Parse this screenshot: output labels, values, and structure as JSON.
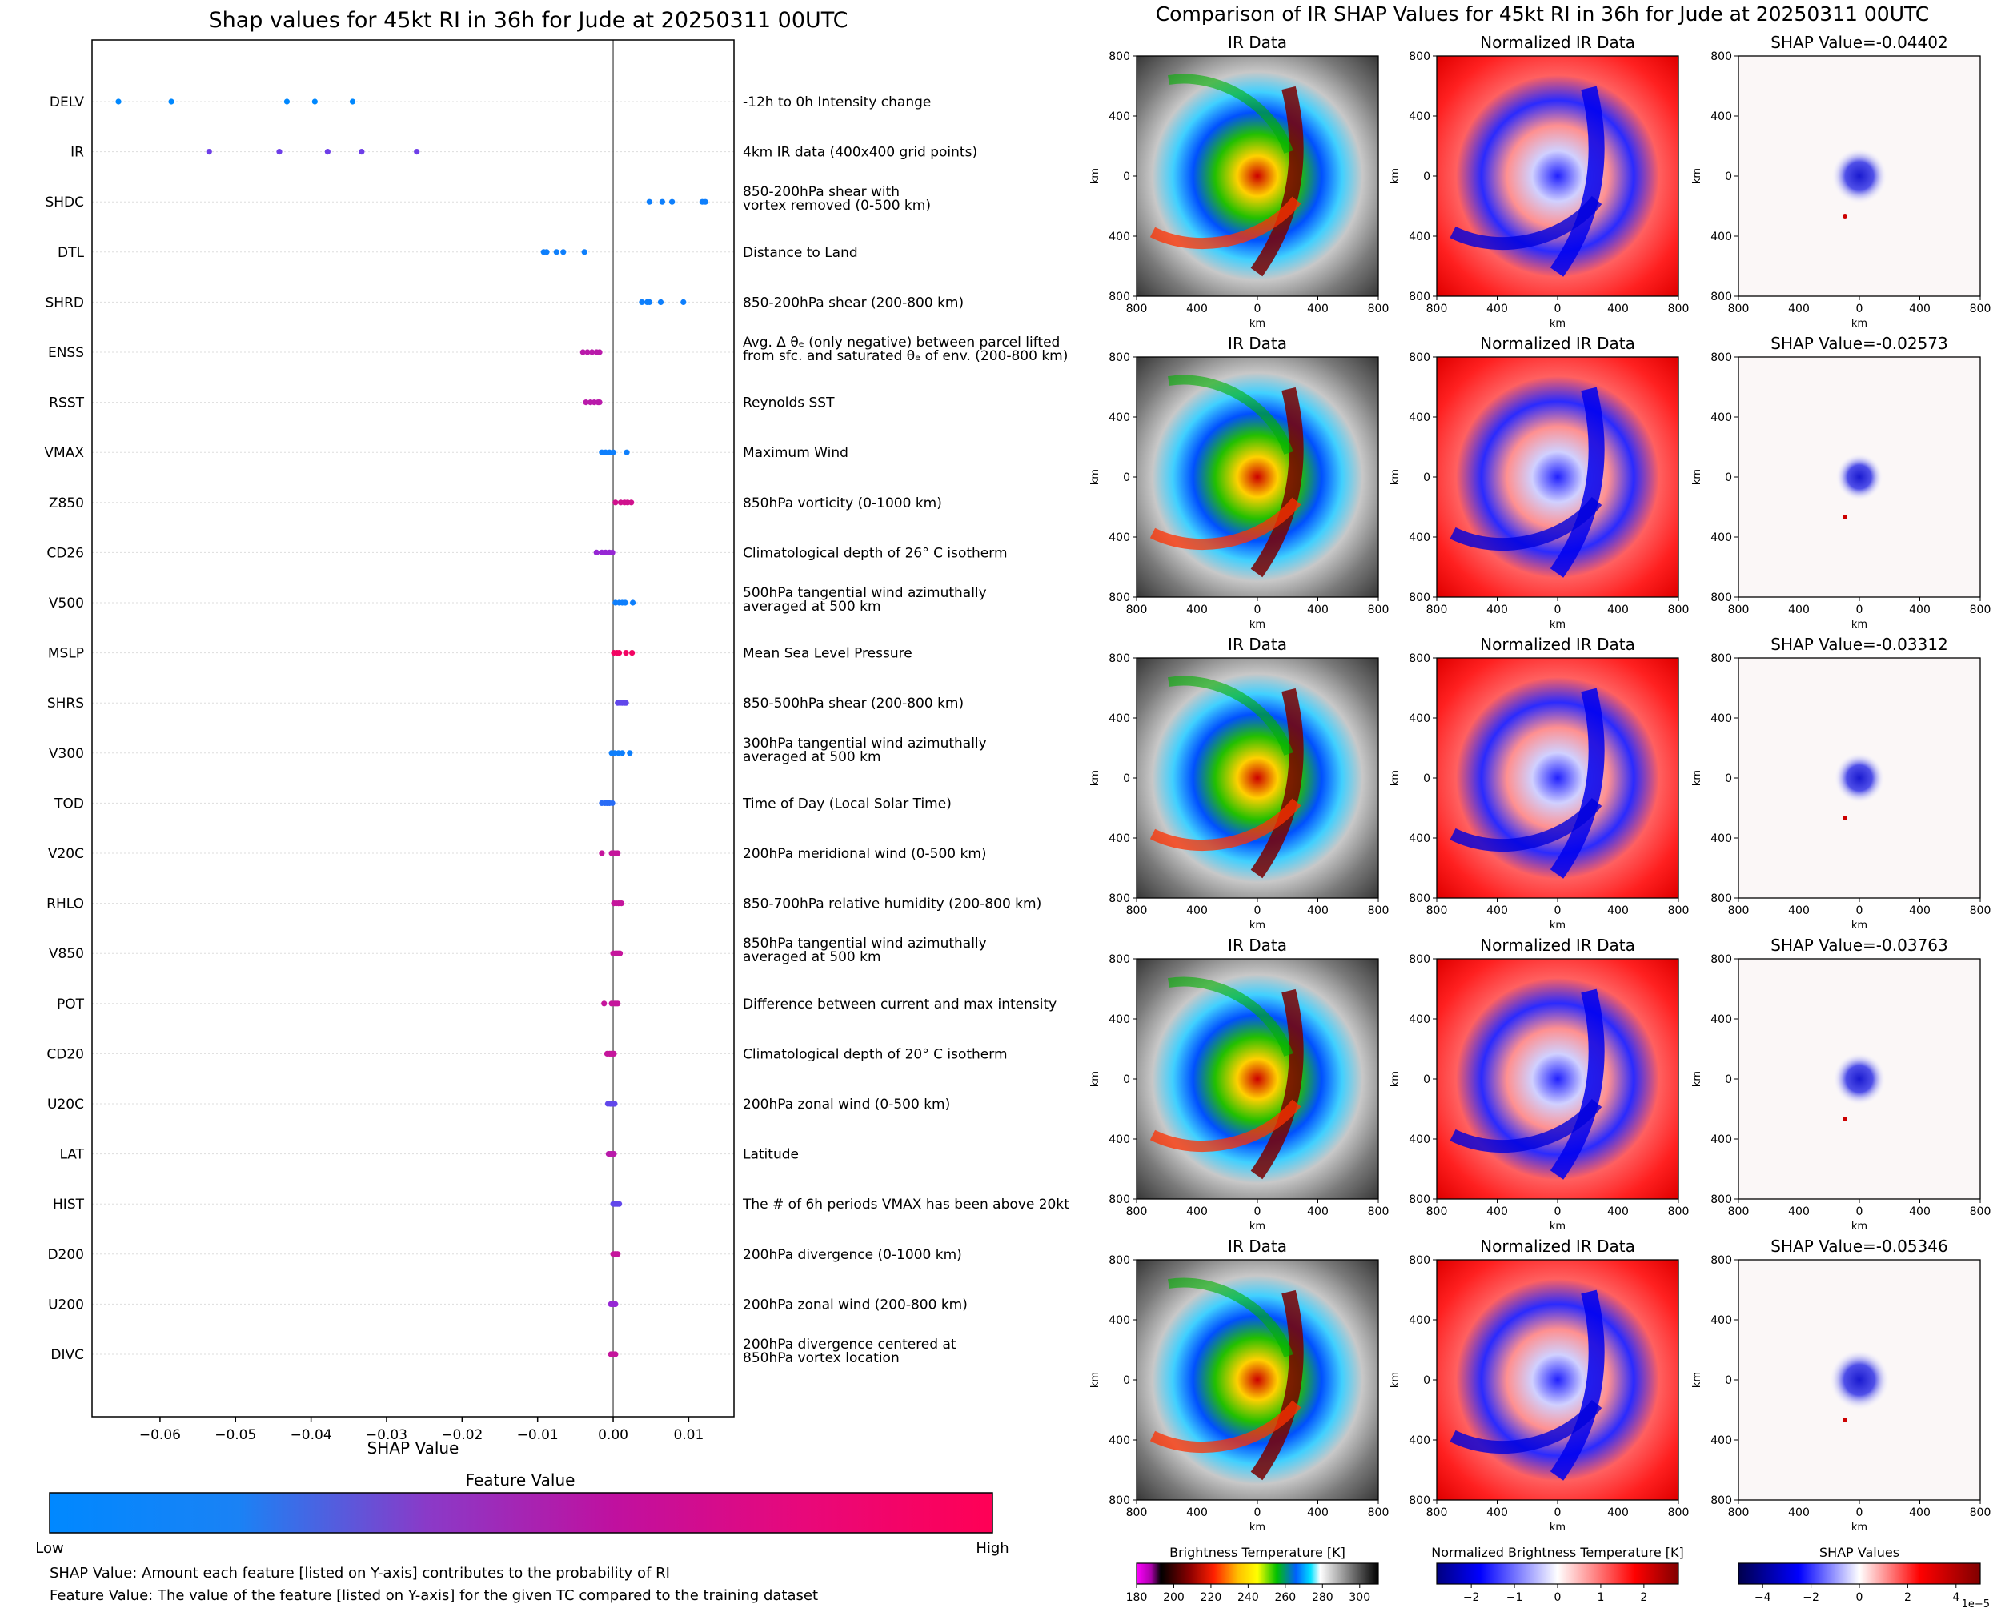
{
  "left_title": "Shap values for 45kt RI in 36h for Jude at 20250311 00UTC",
  "right_title": "Comparison of IR SHAP Values for 45kt RI in 36h for Jude at 20250311 00UTC",
  "colors": {
    "low": "#0088ff",
    "mid": "#8a2be2",
    "high": "#ff0055"
  },
  "chart_data": [
    {
      "type": "scatter",
      "title": "Shap values for 45kt RI in 36h for Jude at 20250311 00UTC",
      "xlabel": "SHAP Value",
      "ylabel": "",
      "xlim": [
        -0.069,
        0.016
      ],
      "xticks": [
        -0.06,
        -0.05,
        -0.04,
        -0.03,
        -0.02,
        -0.01,
        0.0,
        0.01
      ],
      "xtick_labels": [
        "−0.06",
        "−0.05",
        "−0.04",
        "−0.03",
        "−0.02",
        "−0.01",
        "0.00",
        "0.01"
      ],
      "grid": false,
      "features": [
        {
          "name": "DELV",
          "desc": [
            "-12h to 0h Intensity change"
          ],
          "shap": [
            -0.0655,
            -0.0585,
            -0.0432,
            -0.0395,
            -0.0345
          ],
          "fv": [
            0.0,
            0.0,
            0.0,
            0.0,
            0.0
          ]
        },
        {
          "name": "IR",
          "desc": [
            "4km IR data (400x400 grid points)"
          ],
          "shap": [
            -0.0535,
            -0.0442,
            -0.0378,
            -0.0333,
            -0.026
          ],
          "fv": [
            0.4,
            0.4,
            0.4,
            0.4,
            0.4
          ]
        },
        {
          "name": "SHDC",
          "desc": [
            "850-200hPa shear with",
            "vortex removed (0-500 km)"
          ],
          "shap": [
            0.0048,
            0.0065,
            0.0078,
            0.0118,
            0.0122
          ],
          "fv": [
            0.05,
            0.05,
            0.05,
            0.05,
            0.05
          ]
        },
        {
          "name": "DTL",
          "desc": [
            "Distance to Land"
          ],
          "shap": [
            -0.0092,
            -0.0088,
            -0.0075,
            -0.0066,
            -0.0038
          ],
          "fv": [
            0.05,
            0.05,
            0.05,
            0.05,
            0.05
          ]
        },
        {
          "name": "SHRD",
          "desc": [
            "850-200hPa shear (200-800 km)"
          ],
          "shap": [
            0.0038,
            0.0045,
            0.0048,
            0.0063,
            0.0093
          ],
          "fv": [
            0.05,
            0.05,
            0.05,
            0.05,
            0.05
          ]
        },
        {
          "name": "ENSS",
          "desc": [
            "Avg. Δ θₑ (only negative) between parcel lifted",
            "from sfc. and saturated θₑ of env. (200-800 km)"
          ],
          "shap": [
            -0.004,
            -0.0034,
            -0.0028,
            -0.0022,
            -0.0018
          ],
          "fv": [
            0.7,
            0.7,
            0.7,
            0.7,
            0.7
          ]
        },
        {
          "name": "RSST",
          "desc": [
            "Reynolds SST"
          ],
          "shap": [
            -0.0036,
            -0.003,
            -0.0025,
            -0.002,
            -0.0018
          ],
          "fv": [
            0.7,
            0.7,
            0.7,
            0.7,
            0.7
          ]
        },
        {
          "name": "VMAX",
          "desc": [
            "Maximum Wind"
          ],
          "shap": [
            -0.0015,
            -0.001,
            -0.0005,
            0.0,
            0.0018
          ],
          "fv": [
            0.05,
            0.05,
            0.05,
            0.05,
            0.05
          ]
        },
        {
          "name": "Z850",
          "desc": [
            "850hPa vorticity (0-1000 km)"
          ],
          "shap": [
            0.0003,
            0.001,
            0.0015,
            0.0019,
            0.0024
          ],
          "fv": [
            0.8,
            0.8,
            0.8,
            0.8,
            0.8
          ]
        },
        {
          "name": "CD26",
          "desc": [
            "Climatological depth of 26° C isotherm"
          ],
          "shap": [
            -0.0022,
            -0.0015,
            -0.001,
            -0.0005,
            -0.0001
          ],
          "fv": [
            0.55,
            0.55,
            0.55,
            0.55,
            0.55
          ]
        },
        {
          "name": "V500",
          "desc": [
            "500hPa tangential wind azimuthally",
            "averaged at 500 km"
          ],
          "shap": [
            0.0003,
            0.0008,
            0.0012,
            0.0016,
            0.0026
          ],
          "fv": [
            0.05,
            0.05,
            0.05,
            0.05,
            0.05
          ]
        },
        {
          "name": "MSLP",
          "desc": [
            "Mean Sea Level Pressure"
          ],
          "shap": [
            0.0001,
            0.0005,
            0.0008,
            0.0017,
            0.0025
          ],
          "fv": [
            0.95,
            0.95,
            0.95,
            0.95,
            0.95
          ]
        },
        {
          "name": "SHRS",
          "desc": [
            "850-500hPa shear (200-800 km)"
          ],
          "shap": [
            0.0006,
            0.0009,
            0.0012,
            0.0015,
            0.0017
          ],
          "fv": [
            0.35,
            0.35,
            0.35,
            0.35,
            0.35
          ]
        },
        {
          "name": "V300",
          "desc": [
            "300hPa tangential wind azimuthally",
            "averaged at 500 km"
          ],
          "shap": [
            -0.0002,
            0.0002,
            0.0007,
            0.0012,
            0.0022
          ],
          "fv": [
            0.05,
            0.05,
            0.05,
            0.05,
            0.05
          ]
        },
        {
          "name": "TOD",
          "desc": [
            "Time of Day (Local Solar Time)"
          ],
          "shap": [
            -0.0015,
            -0.0011,
            -0.0008,
            -0.0005,
            -0.0001
          ],
          "fv": [
            0.15,
            0.15,
            0.15,
            0.15,
            0.15
          ]
        },
        {
          "name": "V20C",
          "desc": [
            "200hPa meridional wind (0-500 km)"
          ],
          "shap": [
            -0.0015,
            -0.0002,
            0.0001,
            0.0004,
            0.0006
          ],
          "fv": [
            0.75,
            0.75,
            0.75,
            0.75,
            0.75
          ]
        },
        {
          "name": "RHLO",
          "desc": [
            "850-700hPa relative humidity (200-800 km)"
          ],
          "shap": [
            0.0001,
            0.0004,
            0.0007,
            0.0009,
            0.0011
          ],
          "fv": [
            0.75,
            0.75,
            0.75,
            0.75,
            0.75
          ]
        },
        {
          "name": "V850",
          "desc": [
            "850hPa tangential wind azimuthally",
            "averaged at 500 km"
          ],
          "shap": [
            0.0,
            0.0003,
            0.0005,
            0.0007,
            0.0009
          ],
          "fv": [
            0.75,
            0.75,
            0.75,
            0.75,
            0.75
          ]
        },
        {
          "name": "POT",
          "desc": [
            "Difference between current and max intensity"
          ],
          "shap": [
            -0.0012,
            -0.0002,
            0.0002,
            0.0004,
            0.0006
          ],
          "fv": [
            0.75,
            0.75,
            0.75,
            0.75,
            0.75
          ]
        },
        {
          "name": "CD20",
          "desc": [
            "Climatological depth of 20° C isotherm"
          ],
          "shap": [
            -0.0008,
            -0.0005,
            -0.0003,
            -0.0001,
            0.0001
          ],
          "fv": [
            0.75,
            0.75,
            0.75,
            0.75,
            0.75
          ]
        },
        {
          "name": "U20C",
          "desc": [
            "200hPa zonal wind (0-500 km)"
          ],
          "shap": [
            -0.0007,
            -0.0004,
            -0.0002,
            0.0,
            0.0002
          ],
          "fv": [
            0.35,
            0.35,
            0.35,
            0.35,
            0.35
          ]
        },
        {
          "name": "LAT",
          "desc": [
            "Latitude"
          ],
          "shap": [
            -0.0006,
            -0.0004,
            -0.0002,
            0.0,
            0.0001
          ],
          "fv": [
            0.7,
            0.7,
            0.7,
            0.7,
            0.7
          ]
        },
        {
          "name": "HIST",
          "desc": [
            "The # of 6h periods VMAX has been above 20kt"
          ],
          "shap": [
            0.0,
            0.0002,
            0.0004,
            0.0006,
            0.0008
          ],
          "fv": [
            0.35,
            0.35,
            0.35,
            0.35,
            0.35
          ]
        },
        {
          "name": "D200",
          "desc": [
            "200hPa divergence (0-1000 km)"
          ],
          "shap": [
            0.0,
            0.0002,
            0.0003,
            0.0005,
            0.0006
          ],
          "fv": [
            0.75,
            0.75,
            0.75,
            0.75,
            0.75
          ]
        },
        {
          "name": "U200",
          "desc": [
            "200hPa zonal wind (200-800 km)"
          ],
          "shap": [
            -0.0003,
            -0.0001,
            0.0,
            0.0002,
            0.0003
          ],
          "fv": [
            0.55,
            0.55,
            0.55,
            0.55,
            0.55
          ]
        },
        {
          "name": "DIVC",
          "desc": [
            "200hPa divergence centered at",
            "850hPa vortex location"
          ],
          "shap": [
            -0.0003,
            -0.0001,
            0.0,
            0.0002,
            0.0003
          ],
          "fv": [
            0.75,
            0.75,
            0.75,
            0.75,
            0.75
          ]
        }
      ]
    },
    {
      "type": "heatmap",
      "title": "Comparison of IR SHAP Values for 45kt RI in 36h for Jude at 20250311 00UTC",
      "column_titles": [
        "IR Data",
        "Normalized IR Data"
      ],
      "shap_titles": [
        "SHAP Value=-0.04402",
        "SHAP Value=-0.02573",
        "SHAP Value=-0.03312",
        "SHAP Value=-0.03763",
        "SHAP Value=-0.05346"
      ],
      "shap_values": [
        -0.04402,
        -0.02573,
        -0.03312,
        -0.03763,
        -0.05346
      ],
      "xlabel": "km",
      "ylabel": "km",
      "tick_labels": [
        "800",
        "400",
        "0",
        "400",
        "800"
      ],
      "range_km": [
        -800,
        800
      ]
    }
  ],
  "colorbars": {
    "feature": {
      "title": "Feature Value",
      "low_label": "Low",
      "high_label": "High"
    },
    "brightness": {
      "title": "Brightness Temperature [K]",
      "ticks": [
        "180",
        "200",
        "220",
        "240",
        "260",
        "280",
        "300"
      ],
      "range": [
        180,
        310
      ]
    },
    "normalized": {
      "title": "Normalized Brightness Temperature [K]",
      "ticks": [
        "−2",
        "−1",
        "0",
        "1",
        "2"
      ],
      "range": [
        -2.8,
        2.8
      ]
    },
    "shap": {
      "title": "SHAP Values",
      "ticks": [
        "−4",
        "−2",
        "0",
        "2",
        "4"
      ],
      "range": [
        -5.0,
        5.0
      ],
      "exponent": "1e−5"
    }
  },
  "footnotes": {
    "shap": "SHAP Value: Amount each feature [listed on Y-axis] contributes to the probability of RI",
    "feature": "Feature Value: The value of the feature [listed on Y-axis] for the given TC compared to the training dataset"
  }
}
